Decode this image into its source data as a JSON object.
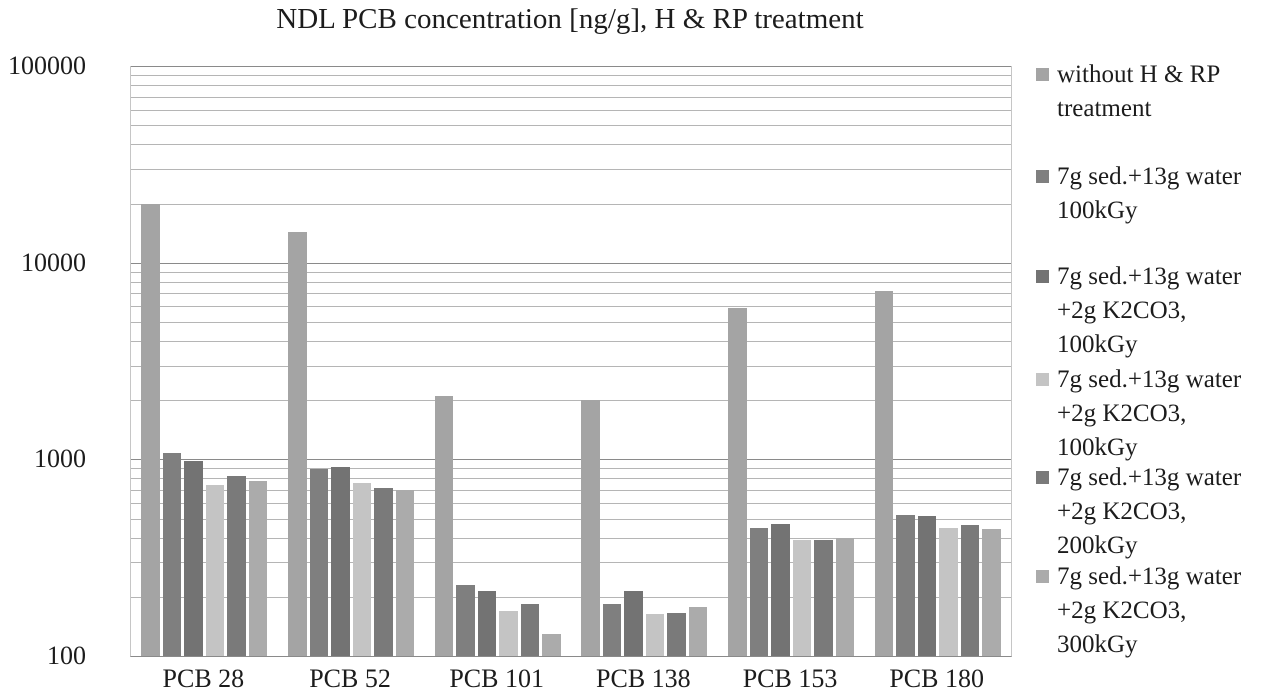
{
  "chart_data": {
    "type": "bar",
    "title": "NDL PCB concentration [ng/g], H & RP treatment",
    "xlabel": "",
    "ylabel": "",
    "y_scale": "log",
    "ylim": [
      100,
      100000
    ],
    "y_ticks": [
      {
        "label": "100000",
        "value": 100000
      },
      {
        "label": "10000",
        "value": 10000
      },
      {
        "label": "1000",
        "value": 1000
      },
      {
        "label": "100",
        "value": 100
      }
    ],
    "grid": "horizontal, log minor and major gridlines",
    "legend_position": "right",
    "categories": [
      "PCB 28",
      "PCB 52",
      "PCB 101",
      "PCB 138",
      "PCB 153",
      "PCB 180"
    ],
    "series": [
      {
        "name": "without H & RP treatment",
        "color": "#a4a4a4",
        "values": [
          20000,
          14300,
          2100,
          2000,
          5900,
          7200
        ]
      },
      {
        "name": "7g sed.+13g water 100kGy",
        "color": "#7f7f7f",
        "values": [
          1075,
          890,
          230,
          185,
          450,
          520
        ]
      },
      {
        "name": "7g sed.+13g water +2g K2CO3, 100kGy",
        "color": "#737373",
        "values": [
          980,
          915,
          215,
          215,
          470,
          515
        ]
      },
      {
        "name": "7g sed.+13g water +2g K2CO3, 100kGy",
        "color": "#c4c4c4",
        "values": [
          745,
          755,
          170,
          163,
          390,
          450
        ]
      },
      {
        "name": "7g sed.+13g water +2g K2CO3, 200kGy",
        "color": "#7a7a7a",
        "values": [
          820,
          715,
          185,
          166,
          390,
          465
        ]
      },
      {
        "name": "7g sed.+13g water +2g K2CO3, 300kGy",
        "color": "#ababab",
        "values": [
          775,
          700,
          130,
          177,
          400,
          445
        ]
      }
    ],
    "legend_labels": [
      "without H & RP\ntreatment",
      "7g sed.+13g water\n100kGy",
      "7g sed.+13g water\n+2g K2CO3,\n100kGy",
      "7g sed.+13g water\n+2g K2CO3,\n100kGy",
      "7g sed.+13g water\n+2g K2CO3,\n200kGy",
      "7g sed.+13g water\n+2g K2CO3,\n300kGy"
    ]
  },
  "colors": {
    "background": "#ffffff",
    "grid_minor": "#b5b5b5",
    "grid_major": "#8a8a8a",
    "plot_border": "#c6c6c6",
    "text": "#1c1c1c"
  }
}
